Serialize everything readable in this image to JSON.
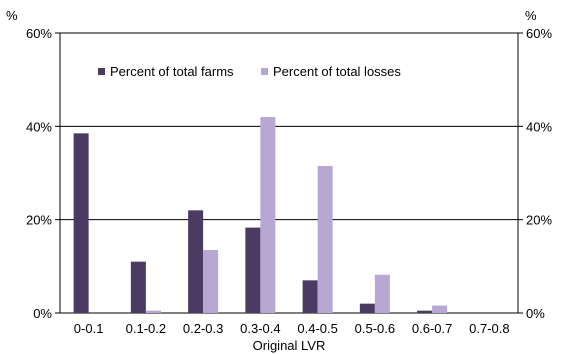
{
  "chart_data": {
    "type": "bar",
    "categories": [
      "0-0.1",
      "0.1-0.2",
      "0.2-0.3",
      "0.3-0.4",
      "0.4-0.5",
      "0.5-0.6",
      "0.6-0.7",
      "0.7-0.8"
    ],
    "series": [
      {
        "name": "Percent of total farms",
        "color": "#4b3b63",
        "values": [
          38.5,
          11,
          22,
          18.3,
          7,
          2,
          0.5,
          0
        ]
      },
      {
        "name": "Percent of total losses",
        "color": "#b8a6d3",
        "values": [
          0,
          0.5,
          13.5,
          42,
          31.5,
          8.2,
          1.6,
          0
        ]
      }
    ],
    "xlabel": "Original LVR",
    "y_unit_left": "%",
    "y_unit_right": "%",
    "ylim": [
      0,
      60
    ],
    "yticks": [
      0,
      20,
      40,
      60
    ],
    "ytick_labels": [
      "0%",
      "20%",
      "40%",
      "60%"
    ],
    "grid": true,
    "legend_position": "top-left"
  }
}
